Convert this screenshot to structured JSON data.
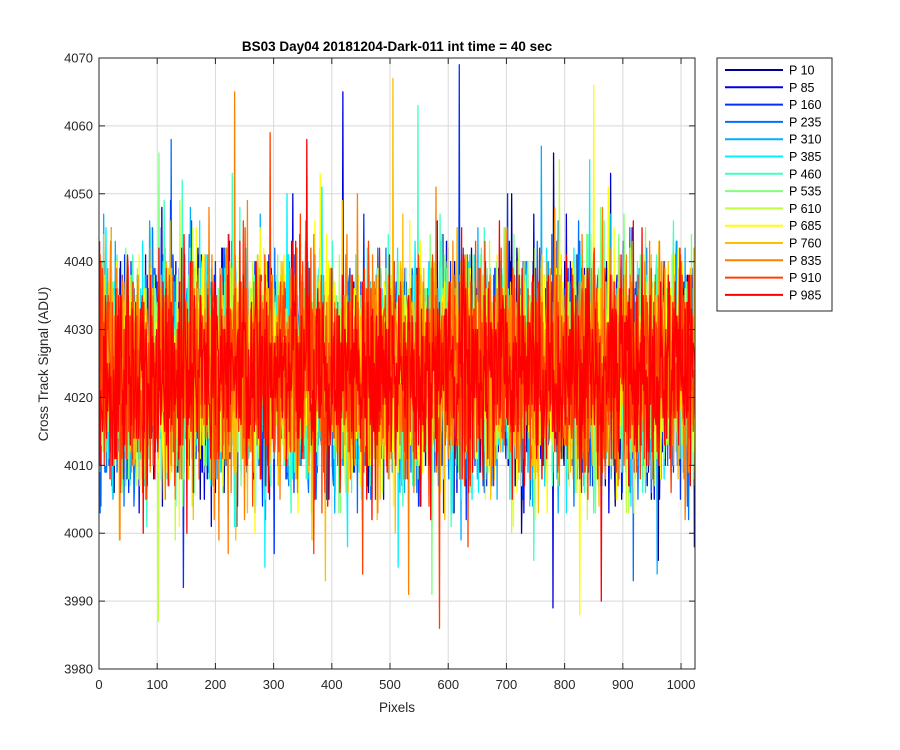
{
  "chart_data": {
    "type": "line",
    "title": "BS03 Day04 20181204-Dark-011 int time = 40 sec",
    "xlabel": "Pixels",
    "ylabel": "Cross Track Signal (ADU)",
    "xlim": [
      0,
      1024
    ],
    "ylim": [
      3980,
      4070
    ],
    "x_ticks": [
      "0",
      "100",
      "200",
      "300",
      "400",
      "500",
      "600",
      "700",
      "800",
      "900",
      "1000"
    ],
    "y_ticks": [
      "3980",
      "3990",
      "4000",
      "4010",
      "4020",
      "4030",
      "4040",
      "4050",
      "4060",
      "4070"
    ],
    "grid": true,
    "legend_position": "outside-right",
    "num_points_per_series": 1024,
    "signal_mean": 4024,
    "signal_std": 8,
    "series": [
      {
        "name": "P 10",
        "color": "#00008f",
        "min": 3996,
        "max": 4056
      },
      {
        "name": "P 85",
        "color": "#0000df",
        "min": 3989,
        "max": 4065
      },
      {
        "name": "P 160",
        "color": "#0030ff",
        "min": 3992,
        "max": 4069
      },
      {
        "name": "P 235",
        "color": "#0070ff",
        "min": 3993,
        "max": 4058
      },
      {
        "name": "P 310",
        "color": "#00b0ff",
        "min": 3994,
        "max": 4057
      },
      {
        "name": "P 385",
        "color": "#00f0ff",
        "min": 3995,
        "max": 4055
      },
      {
        "name": "P 460",
        "color": "#40ffbf",
        "min": 3996,
        "max": 4063
      },
      {
        "name": "P 535",
        "color": "#80ff80",
        "min": 3991,
        "max": 4056
      },
      {
        "name": "P 610",
        "color": "#bfff40",
        "min": 3987,
        "max": 4055
      },
      {
        "name": "P 685",
        "color": "#ffff00",
        "min": 3988,
        "max": 4066
      },
      {
        "name": "P 760",
        "color": "#ffbf00",
        "min": 3993,
        "max": 4067
      },
      {
        "name": "P 835",
        "color": "#ff7f00",
        "min": 3991,
        "max": 4065
      },
      {
        "name": "P 910",
        "color": "#ff4000",
        "min": 3986,
        "max": 4059
      },
      {
        "name": "P 985",
        "color": "#ff0000",
        "min": 3990,
        "max": 4058
      }
    ]
  }
}
